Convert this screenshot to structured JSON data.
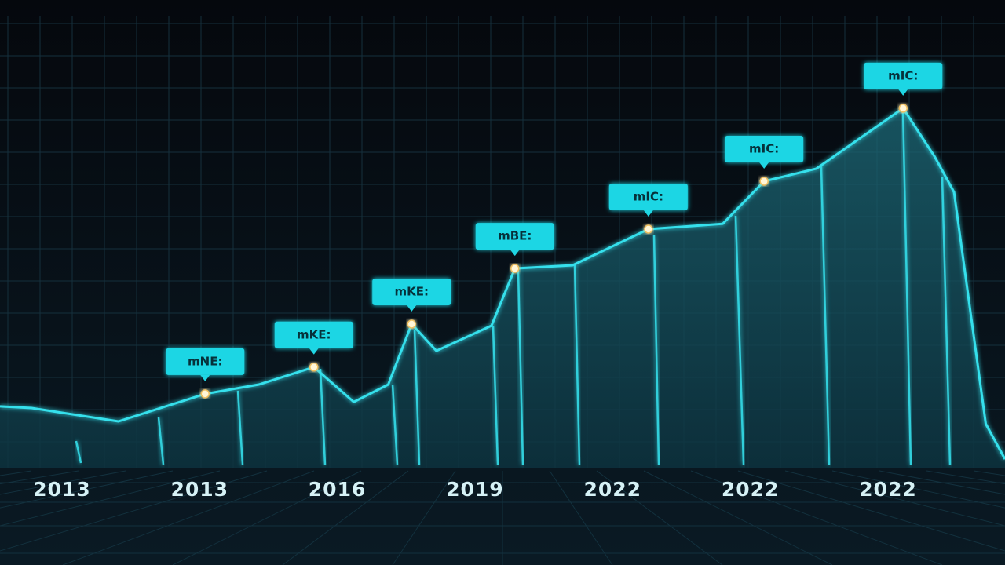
{
  "chart_data": {
    "type": "line",
    "x": [
      -0.45,
      -0.22,
      0.41,
      1.04,
      1.43,
      1.83,
      2.12,
      2.37,
      2.54,
      2.72,
      3.12,
      3.29,
      3.71,
      4.26,
      4.8,
      5.1,
      5.48,
      6.11,
      6.34,
      6.48,
      6.71,
      6.85
    ],
    "values": [
      15.3,
      14.9,
      11.6,
      18.4,
      20.7,
      25.0,
      16.4,
      20.7,
      35.6,
      29.0,
      35.2,
      49.3,
      50.1,
      59.0,
      60.3,
      70.8,
      73.9,
      88.8,
      76.8,
      68.1,
      11.0,
      2.3
    ],
    "color": "#36e0ec",
    "xlim": [
      -0.45,
      6.85
    ],
    "xticks": [
      {
        "value": 0,
        "label": "2013"
      },
      {
        "value": 1,
        "label": "2013"
      },
      {
        "value": 2,
        "label": "2016"
      },
      {
        "value": 3,
        "label": "2019"
      },
      {
        "value": 4,
        "label": "2022"
      },
      {
        "value": 5,
        "label": "2022"
      },
      {
        "value": 6,
        "label": "2022"
      }
    ],
    "ylim": [
      0,
      100
    ],
    "annotations": [
      {
        "x": 1.04,
        "y": 18.4,
        "label": "mNE:"
      },
      {
        "x": 1.83,
        "y": 25.0,
        "label": "mKE:"
      },
      {
        "x": 2.54,
        "y": 35.6,
        "label": "mKE:"
      },
      {
        "x": 3.29,
        "y": 49.3,
        "label": "mBE:"
      },
      {
        "x": 4.26,
        "y": 59.0,
        "label": "mIC:"
      },
      {
        "x": 5.1,
        "y": 70.8,
        "label": "mIC:"
      },
      {
        "x": 6.11,
        "y": 88.8,
        "label": "mIC:"
      }
    ]
  }
}
